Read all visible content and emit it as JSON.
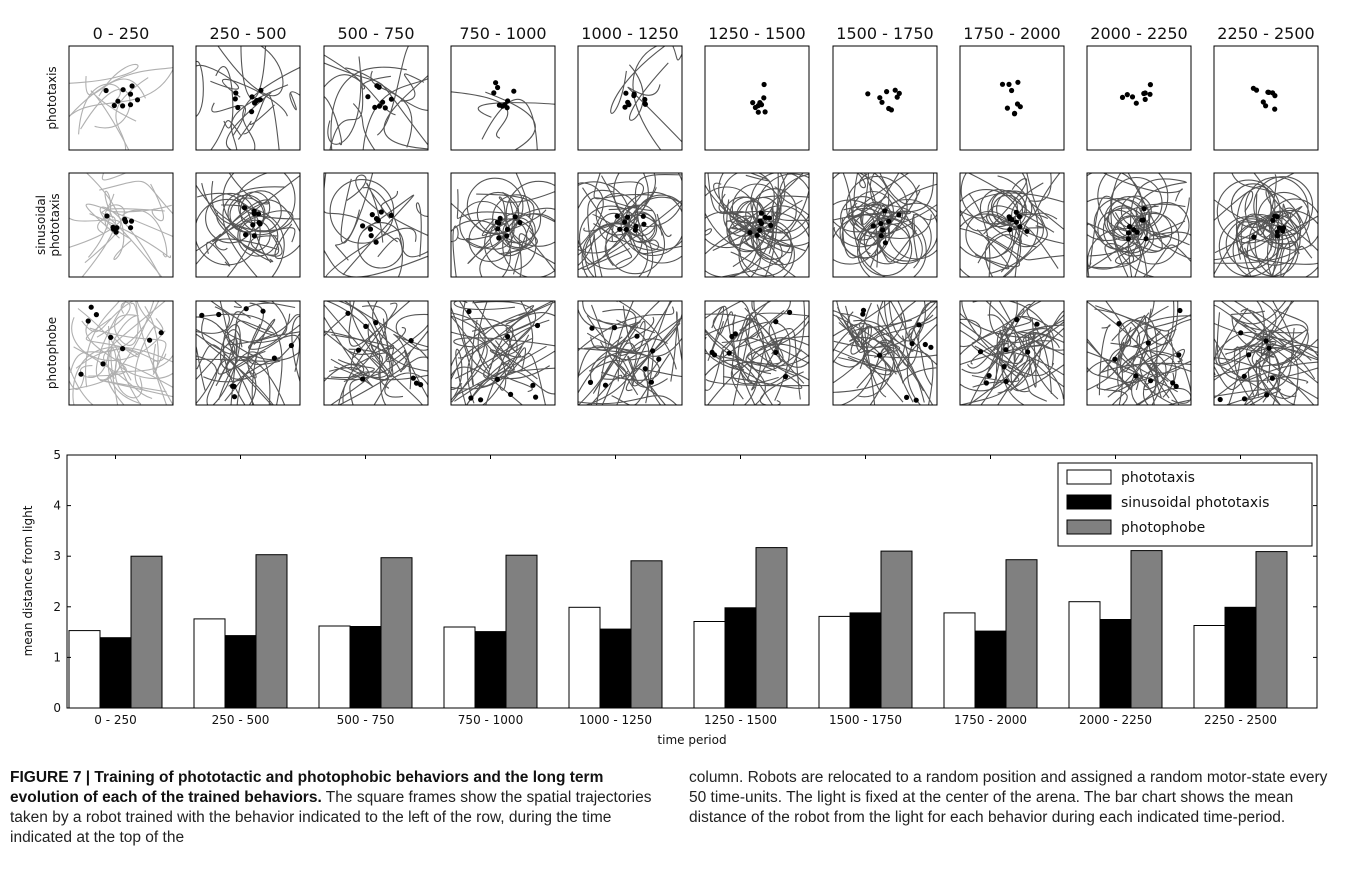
{
  "col_headers": [
    "0 - 250",
    "250 - 500",
    "500 - 750",
    "750 - 1000",
    "1000 - 1250",
    "1250 - 1500",
    "1500 - 1750",
    "1750 - 2000",
    "2000 - 2250",
    "2250 - 2500"
  ],
  "row_labels": [
    {
      "lines": [
        "phototaxis"
      ]
    },
    {
      "lines": [
        "sinusoidal",
        "phototaxis"
      ]
    },
    {
      "lines": [
        "photophobe"
      ]
    }
  ],
  "chart_data": {
    "type": "bar",
    "categories": [
      "0 - 250",
      "250 - 500",
      "500 - 750",
      "750 - 1000",
      "1000 - 1250",
      "1250 - 1500",
      "1500 - 1750",
      "1750 - 2000",
      "2000 - 2250",
      "2250 - 2500"
    ],
    "series": [
      {
        "name": "phototaxis",
        "color": "#ffffff",
        "values": [
          1.53,
          1.76,
          1.62,
          1.6,
          1.99,
          1.71,
          1.81,
          1.88,
          2.1,
          1.63
        ]
      },
      {
        "name": "sinusoidal phototaxis",
        "color": "#000000",
        "values": [
          1.39,
          1.43,
          1.61,
          1.51,
          1.56,
          1.98,
          1.88,
          1.52,
          1.75,
          1.99
        ]
      },
      {
        "name": "photophobe",
        "color": "#808080",
        "values": [
          3.0,
          3.03,
          2.97,
          3.02,
          2.91,
          3.17,
          3.1,
          2.93,
          3.11,
          3.09
        ]
      }
    ],
    "ylim": [
      0,
      5
    ],
    "yticks": [
      "0",
      "1",
      "2",
      "3",
      "4",
      "5"
    ],
    "ylabel": "mean distance from light",
    "xlabel": "time period",
    "legend_position": "top-right"
  },
  "caption": {
    "bold": "FIGURE 7 | Training of phototactic and photophobic behaviors and the long term evolution of each of the trained behaviors.",
    "left_text": " The square frames show the spatial trajectories taken by a robot trained with the behavior indicated to the left of the row, during the time indicated at the top of the",
    "right_text": "column. Robots are relocated to a random position and assigned a random motor-state every 50 time-units. The light is fixed at the center of the arena. The bar chart shows the mean distance of the robot from the light for each behavior during each indicated time-period."
  }
}
